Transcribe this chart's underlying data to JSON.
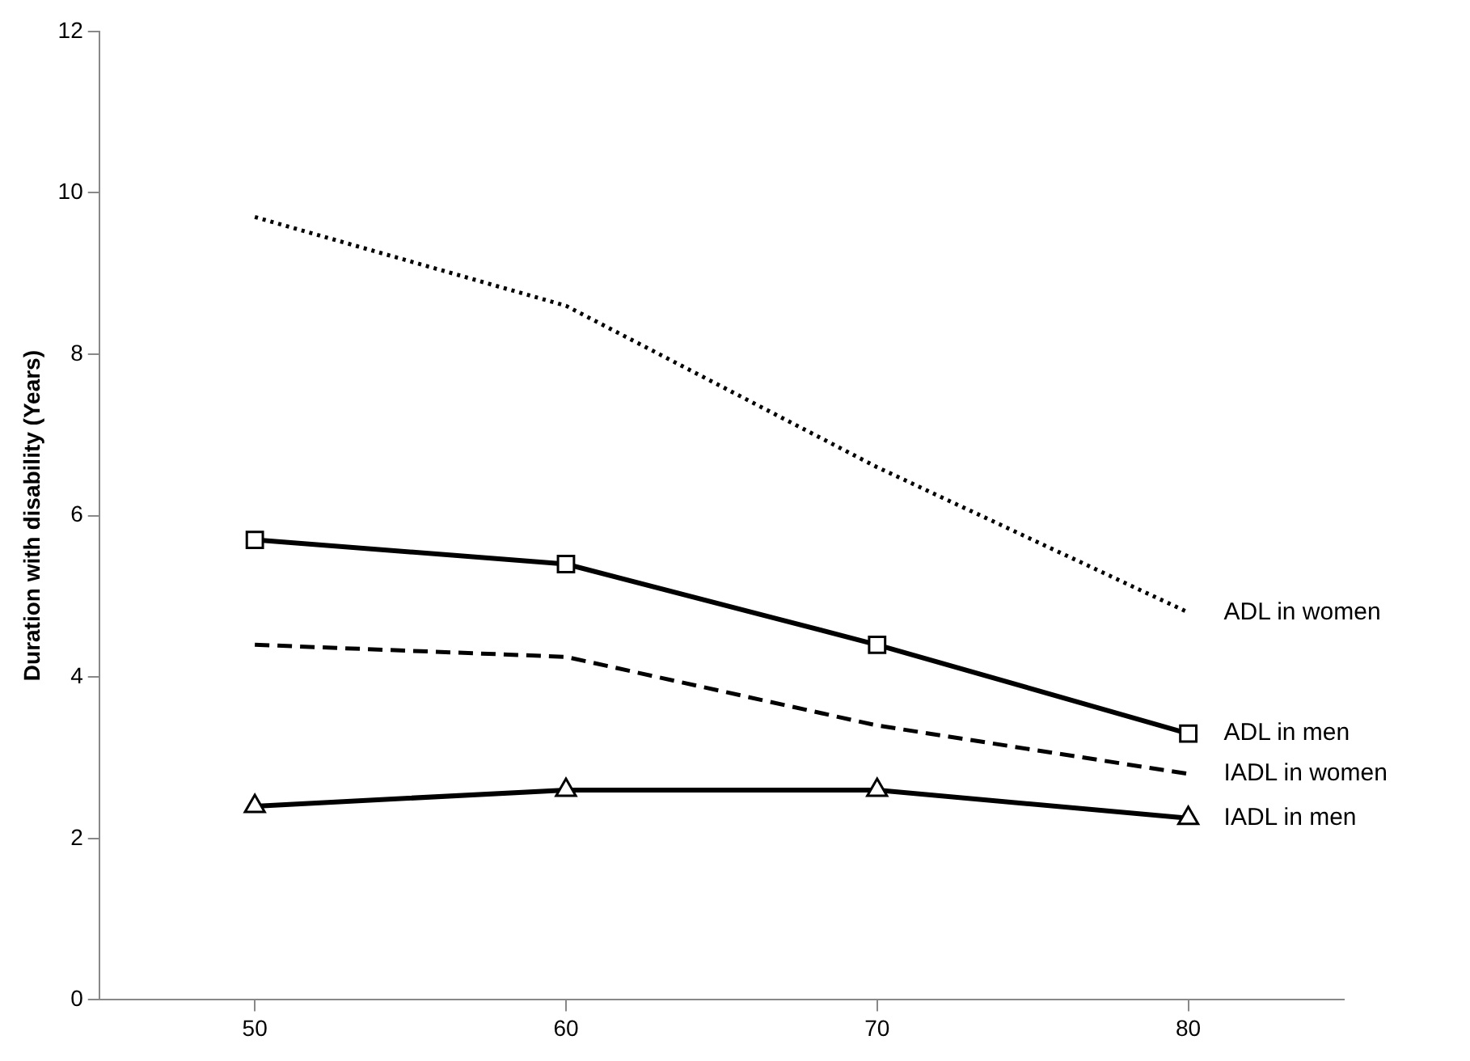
{
  "chart_data": {
    "type": "line",
    "ylabel": "Duration with disability (Years)",
    "x": [
      50,
      60,
      70,
      80
    ],
    "xlim": [
      45,
      85
    ],
    "xticks": [
      50,
      60,
      70,
      80
    ],
    "ylim": [
      0,
      12
    ],
    "yticks": [
      0,
      2,
      4,
      6,
      8,
      10,
      12
    ],
    "grid": false,
    "legend": false,
    "series": [
      {
        "name": "ADL in women",
        "color": "#000000",
        "values": [
          9.7,
          8.6,
          6.6,
          4.8
        ],
        "marker": "none",
        "line_style": "dotted"
      },
      {
        "name": "ADL in men",
        "color": "#000000",
        "values": [
          5.7,
          5.4,
          4.4,
          3.3
        ],
        "marker": "square",
        "line_style": "solid"
      },
      {
        "name": "IADL in women",
        "color": "#000000",
        "values": [
          4.4,
          4.25,
          3.4,
          2.8
        ],
        "marker": "none",
        "line_style": "dashed"
      },
      {
        "name": "IADL in men",
        "color": "#000000",
        "values": [
          2.4,
          2.6,
          2.6,
          2.25
        ],
        "marker": "triangle",
        "line_style": "solid"
      }
    ]
  }
}
